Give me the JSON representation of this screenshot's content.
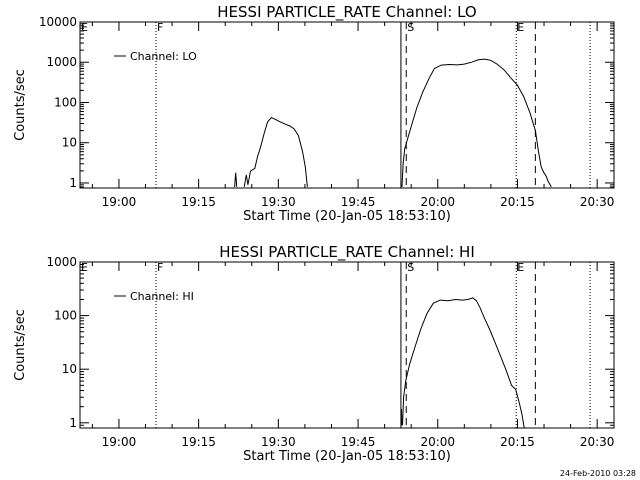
{
  "chart_data": [
    {
      "type": "line",
      "title": "HESSI PARTICLE_RATE Channel: LO",
      "xlabel": "Start Time (20-Jan-05 18:53:10)",
      "ylabel": "Counts/sec",
      "yscale": "log",
      "xlim_min": [
        -0.5,
        100.0
      ],
      "ylim": [
        0.75,
        10000
      ],
      "xtick_values": [
        6.83,
        21.83,
        36.83,
        51.83,
        66.83,
        81.83,
        96.83
      ],
      "xtick_labels": [
        "19:00",
        "19:15",
        "19:30",
        "19:45",
        "20:00",
        "20:15",
        "20:30"
      ],
      "ytick_values": [
        1,
        10,
        100,
        1000,
        10000
      ],
      "ytick_labels": [
        "1",
        "10",
        "100",
        "1000",
        "10000"
      ],
      "legend": "Channel: LO",
      "markers": [
        {
          "x": -0.5,
          "label": "E",
          "style": "dotted"
        },
        {
          "x": 13.8,
          "label": "F",
          "style": "dotted"
        },
        {
          "x": 60.9,
          "label": "S",
          "style": "dashed"
        },
        {
          "x": 81.6,
          "label": "E",
          "style": "dotted"
        },
        {
          "x": 85.2,
          "label": "",
          "style": "dashed"
        },
        {
          "x": 95.5,
          "label": "",
          "style": "dotted"
        }
      ],
      "vlines": [
        {
          "x": 59.9
        }
      ],
      "segments": [
        [
          [
            28.6,
            0.8
          ],
          [
            28.8,
            1.8
          ],
          [
            29.0,
            0.8
          ]
        ],
        [
          [
            30.4,
            0.8
          ],
          [
            30.8,
            1.6
          ],
          [
            31.1,
            0.9
          ],
          [
            31.6,
            2.0
          ],
          [
            32.4,
            2.3
          ],
          [
            32.9,
            4.5
          ],
          [
            33.5,
            8
          ],
          [
            34.2,
            18
          ],
          [
            34.8,
            33
          ],
          [
            35.5,
            42
          ],
          [
            36.3,
            38
          ],
          [
            37.2,
            33
          ],
          [
            38.1,
            29
          ],
          [
            39.0,
            26
          ],
          [
            39.8,
            22
          ],
          [
            40.6,
            15
          ],
          [
            41.4,
            6
          ],
          [
            41.9,
            2.5
          ],
          [
            42.3,
            0.8
          ]
        ],
        [
          [
            60.1,
            0.8
          ],
          [
            60.3,
            3
          ],
          [
            60.6,
            7
          ],
          [
            61.2,
            13
          ],
          [
            62.0,
            30
          ],
          [
            62.9,
            75
          ],
          [
            64.0,
            180
          ],
          [
            65.2,
            400
          ],
          [
            66.2,
            700
          ],
          [
            67.5,
            850
          ],
          [
            69.0,
            880
          ],
          [
            70.5,
            860
          ],
          [
            71.8,
            900
          ],
          [
            73.2,
            1000
          ],
          [
            74.5,
            1150
          ],
          [
            75.6,
            1200
          ],
          [
            76.8,
            1120
          ],
          [
            78.0,
            900
          ],
          [
            79.3,
            650
          ],
          [
            80.5,
            420
          ],
          [
            81.8,
            270
          ],
          [
            83.0,
            140
          ],
          [
            84.2,
            55
          ],
          [
            85.2,
            20
          ],
          [
            85.8,
            6
          ],
          [
            86.3,
            2.5
          ],
          [
            86.8,
            1.8
          ],
          [
            87.2,
            1.5
          ],
          [
            87.6,
            1.1
          ],
          [
            88.2,
            0.8
          ]
        ]
      ]
    },
    {
      "type": "line",
      "title": "HESSI PARTICLE_RATE Channel: HI",
      "xlabel": "Start Time (20-Jan-05 18:53:10)",
      "ylabel": "Counts/sec",
      "yscale": "log",
      "xlim_min": [
        -0.5,
        100.0
      ],
      "ylim": [
        0.8,
        1000
      ],
      "xtick_values": [
        6.83,
        21.83,
        36.83,
        51.83,
        66.83,
        81.83,
        96.83
      ],
      "xtick_labels": [
        "19:00",
        "19:15",
        "19:30",
        "19:45",
        "20:00",
        "20:15",
        "20:30"
      ],
      "ytick_values": [
        1,
        10,
        100,
        1000
      ],
      "ytick_labels": [
        "1",
        "10",
        "100",
        "1000"
      ],
      "legend": "Channel: HI",
      "markers": [
        {
          "x": -0.5,
          "label": "E",
          "style": "dotted"
        },
        {
          "x": 13.8,
          "label": "F",
          "style": "dotted"
        },
        {
          "x": 60.9,
          "label": "S",
          "style": "dashed"
        },
        {
          "x": 81.6,
          "label": "E",
          "style": "dotted"
        },
        {
          "x": 85.2,
          "label": "",
          "style": "dashed"
        },
        {
          "x": 95.5,
          "label": "",
          "style": "dotted"
        }
      ],
      "vlines": [
        {
          "x": 59.9
        }
      ],
      "segments": [
        [
          [
            60.0,
            1.8
          ],
          [
            60.1,
            0.9
          ]
        ],
        [
          [
            60.2,
            0.9
          ],
          [
            60.4,
            3
          ],
          [
            60.8,
            6
          ],
          [
            61.5,
            12
          ],
          [
            62.5,
            25
          ],
          [
            63.6,
            55
          ],
          [
            64.8,
            110
          ],
          [
            66.0,
            170
          ],
          [
            67.3,
            195
          ],
          [
            68.8,
            190
          ],
          [
            70.2,
            200
          ],
          [
            71.5,
            195
          ],
          [
            72.5,
            200
          ],
          [
            73.4,
            215
          ],
          [
            74.1,
            190
          ],
          [
            74.8,
            140
          ],
          [
            75.6,
            90
          ],
          [
            76.6,
            55
          ],
          [
            77.7,
            30
          ],
          [
            78.8,
            16
          ],
          [
            79.8,
            9
          ],
          [
            80.7,
            5
          ],
          [
            81.5,
            4.2
          ],
          [
            82.2,
            2.3
          ],
          [
            82.7,
            1.4
          ],
          [
            83.1,
            0.8
          ]
        ]
      ]
    }
  ],
  "footer": {
    "timestamp": "24-Feb-2010 03:28"
  }
}
